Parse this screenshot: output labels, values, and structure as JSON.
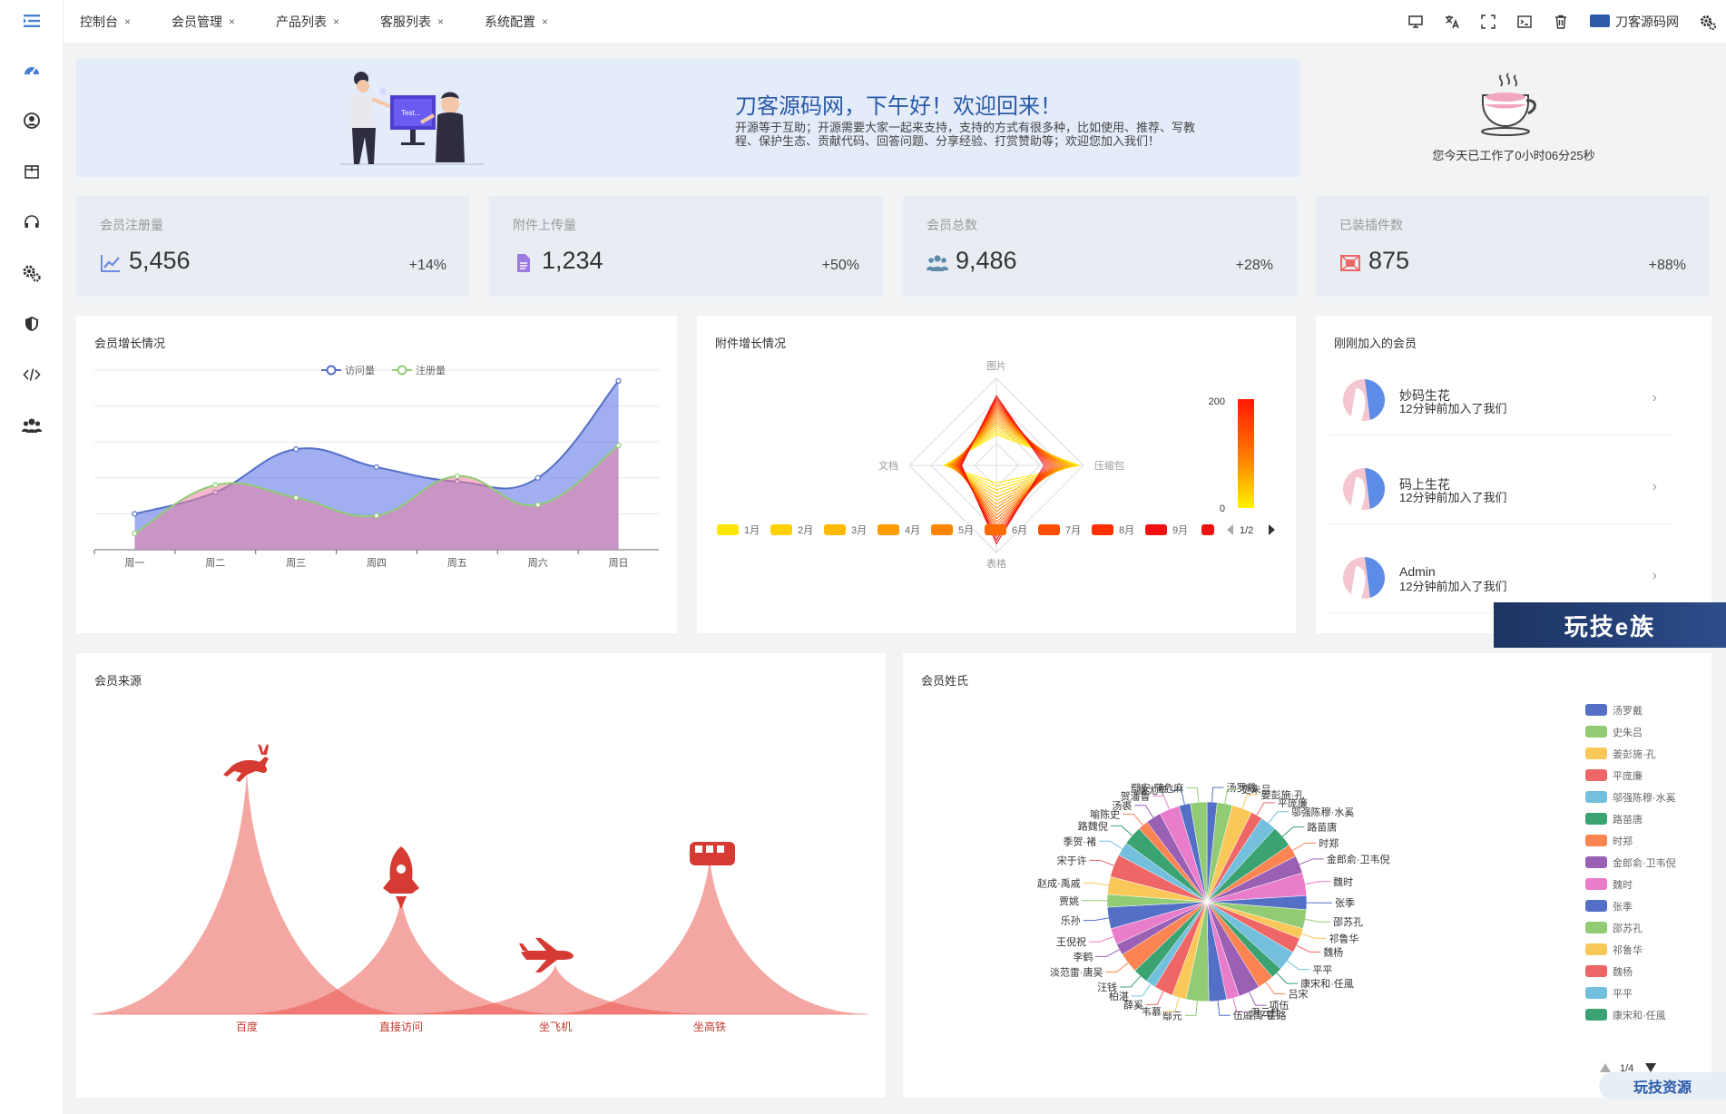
{
  "tabs": [
    {
      "label": "控制台"
    },
    {
      "label": "会员管理"
    },
    {
      "label": "产品列表"
    },
    {
      "label": "客服列表"
    },
    {
      "label": "系统配置"
    }
  ],
  "header": {
    "site_name": "刀客源码网",
    "icons": [
      "monitor-icon",
      "translate-icon",
      "fullscreen-icon",
      "terminal-icon",
      "trash-icon",
      "settings-icon"
    ]
  },
  "sidebar": {
    "icons": [
      "menu-toggle-icon",
      "dashboard-icon",
      "user-icon",
      "package-icon",
      "headset-icon",
      "gears-icon",
      "shield-icon",
      "code-icon",
      "users-icon"
    ]
  },
  "banner": {
    "greeting": "刀客源码网，下午好！欢迎回来！",
    "text_line1": "开源等于互助；开源需要大家一起来支持，支持的方式有很多种，比如使用、推荐、写教",
    "text_line2": "程、保护生态、贡献代码、回答问题、分享经验、打赏赞助等；欢迎您加入我们！",
    "work_time": "您今天已工作了0小时06分25秒"
  },
  "stats": [
    {
      "label": "会员注册量",
      "value": "5,456",
      "change": "+14%",
      "icon": "line-chart-icon",
      "color": "#6e8be0"
    },
    {
      "label": "附件上传量",
      "value": "1,234",
      "change": "+50%",
      "icon": "file-icon",
      "color": "#9b7be0"
    },
    {
      "label": "会员总数",
      "value": "9,486",
      "change": "+28%",
      "icon": "users-icon",
      "color": "#5f8aa8"
    },
    {
      "label": "已装插件数",
      "value": "875",
      "change": "+88%",
      "icon": "plugin-icon",
      "color": "#e66"
    }
  ],
  "growth": {
    "title": "会员增长情况"
  },
  "attach": {
    "title": "附件增长情况"
  },
  "recent": {
    "title": "刚刚加入的会员",
    "members": [
      {
        "name": "妙码生花",
        "time": "12分钟前加入了我们"
      },
      {
        "name": "码上生花",
        "time": "12分钟前加入了我们"
      },
      {
        "name": "Admin",
        "time": "12分钟前加入了我们"
      }
    ]
  },
  "source": {
    "title": "会员来源"
  },
  "surname": {
    "title": "会员姓氏",
    "legend_page": "1/4"
  },
  "watermarks": {
    "top": "玩技e族",
    "bottom": "玩技资源"
  },
  "chart_data": [
    {
      "type": "area",
      "title": "会员增长情况",
      "categories": [
        "周一",
        "周二",
        "周三",
        "周四",
        "周五",
        "周六",
        "周日"
      ],
      "series": [
        {
          "name": "访问量",
          "values": [
            100,
            160,
            280,
            230,
            190,
            200,
            470
          ],
          "color": "#5470c6"
        },
        {
          "name": "注册量",
          "values": [
            45,
            180,
            145,
            95,
            205,
            125,
            290
          ],
          "color": "#91cc75"
        }
      ],
      "ylim": [
        0,
        500
      ]
    },
    {
      "type": "radar",
      "title": "附件增长情况",
      "indicators": [
        "图片",
        "压缩包",
        "表格",
        "文档"
      ],
      "series_names": [
        "1月",
        "2月",
        "3月",
        "4月",
        "5月",
        "6月",
        "7月",
        "8月",
        "9月"
      ],
      "legend_page": "1/2",
      "visualmap": {
        "min": 0,
        "max": 200
      }
    },
    {
      "type": "pictorialBar",
      "title": "会员来源",
      "categories": [
        "百度",
        "直接访问",
        "坐飞机",
        "坐高铁"
      ],
      "values": [
        123,
        60,
        25,
        80
      ],
      "icons": [
        "deer-icon",
        "rocket-icon",
        "plane-icon",
        "train-icon"
      ]
    },
    {
      "type": "pie",
      "title": "会员姓氏",
      "labels": [
        "汤罗戴",
        "史朱吕",
        "姜彭施·孔",
        "平庞廉",
        "邬强陈穆·水奚",
        "路苗唐",
        "时郑",
        "金郎俞·卫韦倪",
        "魏时",
        "张季",
        "邵苏孔",
        "祁鲁华",
        "魏杨",
        "平平",
        "康宋和·任風",
        "吕宋",
        "项伍",
        "尹云杜",
        "伍戚禹·霍路",
        "鄢元",
        "韦慕",
        "薛奚",
        "柏湛",
        "汪钱",
        "淡范雷·唐吴",
        "李鹤",
        "王倪祝",
        "乐孙",
        "贾姚",
        "赵成·禹戚",
        "宋于许",
        "季贺·褚",
        "路魏倪",
        "喻陈史",
        "汤裘",
        "贺潘鲁",
        "常尤毕",
        "鄢安·蒲危麻"
      ],
      "legend": [
        "汤罗戴",
        "史朱吕",
        "姜彭施·孔",
        "平庞廉",
        "邬强陈穆·水奚",
        "路苗唐",
        "时郑",
        "金郎俞·卫韦倪",
        "魏时",
        "张季",
        "邵苏孔",
        "祁鲁华",
        "魏杨",
        "平平",
        "康宋和·任風"
      ],
      "legend_colors": [
        "#5470c6",
        "#91cc75",
        "#fac858",
        "#ee6666",
        "#73c0de",
        "#3ba272",
        "#fc8452",
        "#9a60b4",
        "#ea7ccc",
        "#5470c6",
        "#91cc75",
        "#fac858",
        "#ee6666",
        "#73c0de",
        "#3ba272"
      ]
    }
  ]
}
